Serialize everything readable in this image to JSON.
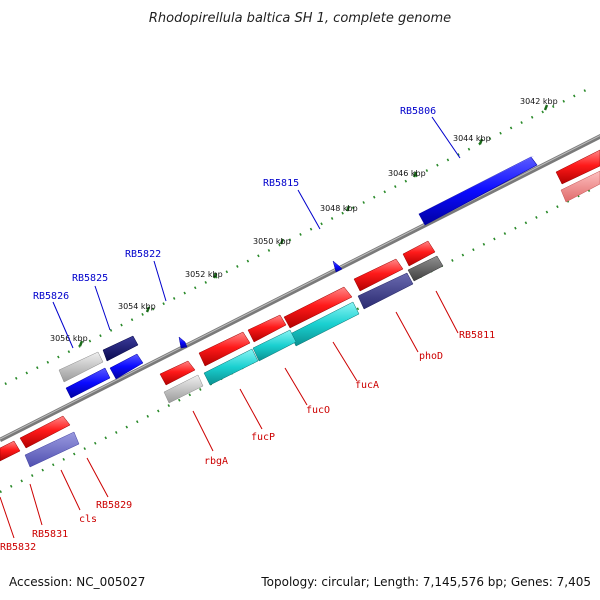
{
  "title": "Rhodopirellula baltica SH 1, complete genome",
  "footer": {
    "accession": "Accession: NC_005027",
    "summary": "Topology: circular; Length: 7,145,576 bp; Genes: 7,405"
  },
  "colors": {
    "forward_gene": "#ff0000",
    "reverse_gene": "#0000ff",
    "label_forward": "#cc0000",
    "label_reverse": "#0000cc",
    "backbone": "#808080",
    "tick": "#2a8a2a"
  },
  "kbp_labels": [
    "3042 kbp",
    "3044 kbp",
    "3046 kbp",
    "3048 kbp",
    "3050 kbp",
    "3052 kbp",
    "3054 kbp",
    "3056 kbp"
  ],
  "gene_labels_top": [
    "RB5806",
    "RB5815",
    "RB5822",
    "RB5825",
    "RB5826"
  ],
  "gene_labels_bottom": [
    "RB5811",
    "phoD",
    "fucA",
    "fucO",
    "fucP",
    "rbgA",
    "RB5829",
    "cls",
    "RB5831",
    "RB5832"
  ]
}
